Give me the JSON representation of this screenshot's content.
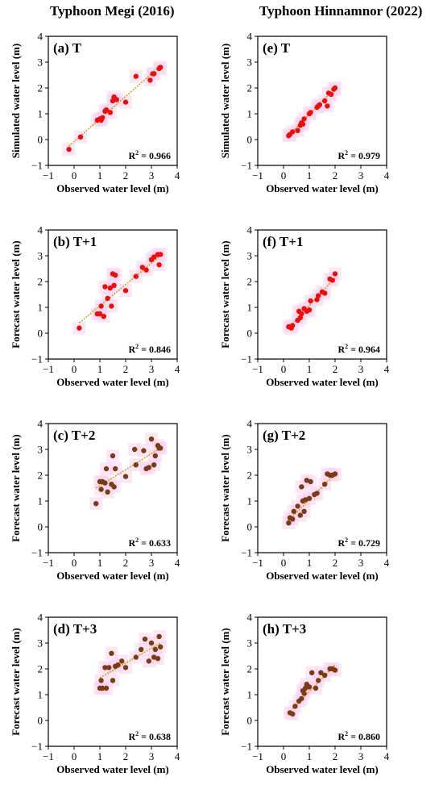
{
  "column_titles": [
    "Typhoon Megi (2016)",
    "Typhoon Hinnamnor (2022)"
  ],
  "colors": {
    "red_points": "#e8100c",
    "brown_points": "#7b3c15",
    "fit_line": "#d39a00",
    "halo": "#f7d4ee"
  },
  "chart_data": [
    {
      "type": "scatter",
      "panel_label": "(a) T",
      "xlabel": "Observed water level (m)",
      "ylabel": "Simulated water level (m)",
      "xlim": [
        -1,
        4
      ],
      "ylim": [
        -1,
        4
      ],
      "xticks": [
        -1,
        0,
        1,
        2,
        3,
        4
      ],
      "yticks": [
        -1,
        0,
        1,
        2,
        3,
        4
      ],
      "r2_label": "R",
      "r2_sup": "2",
      "r2_value": " = 0.966",
      "marker_color": "#e8100c",
      "fit_line": {
        "x": [
          -0.2,
          3.35
        ],
        "y": [
          -0.25,
          2.85
        ]
      },
      "points": {
        "x": [
          -0.2,
          0.25,
          0.9,
          1.0,
          1.05,
          1.1,
          1.2,
          1.25,
          1.4,
          1.5,
          1.55,
          1.65,
          2.0,
          2.4,
          2.95,
          3.05,
          3.1,
          3.3,
          3.35
        ],
        "y": [
          -0.38,
          0.1,
          0.75,
          0.8,
          0.75,
          0.85,
          1.1,
          1.15,
          1.05,
          1.5,
          1.65,
          1.55,
          1.45,
          2.45,
          2.3,
          2.55,
          2.55,
          2.75,
          2.8
        ]
      }
    },
    {
      "type": "scatter",
      "panel_label": "(b) T+1",
      "xlabel": "Observed water level (m)",
      "ylabel": "Forecast water level (m)",
      "xlim": [
        -1,
        4
      ],
      "ylim": [
        -1,
        4
      ],
      "xticks": [
        -1,
        0,
        1,
        2,
        3,
        4
      ],
      "yticks": [
        -1,
        0,
        1,
        2,
        3,
        4
      ],
      "r2_label": "R",
      "r2_sup": "2",
      "r2_value": " = 0.846",
      "marker_color": "#e8100c",
      "fit_line": {
        "x": [
          0.2,
          3.35
        ],
        "y": [
          0.4,
          3.0
        ]
      },
      "points": {
        "x": [
          0.2,
          0.9,
          1.0,
          1.05,
          1.15,
          1.2,
          1.3,
          1.4,
          1.45,
          1.5,
          1.55,
          1.6,
          2.0,
          2.4,
          2.65,
          2.8,
          3.0,
          3.1,
          3.25,
          3.3,
          3.35
        ],
        "y": [
          0.2,
          0.75,
          0.75,
          1.05,
          0.65,
          1.8,
          1.35,
          1.75,
          1.05,
          2.3,
          1.85,
          2.25,
          1.65,
          2.2,
          2.55,
          2.45,
          2.85,
          2.95,
          3.05,
          2.65,
          3.05
        ]
      }
    },
    {
      "type": "scatter",
      "panel_label": "(c) T+2",
      "xlabel": "Observed water level (m)",
      "ylabel": "Forecast water level (m)",
      "xlim": [
        -1,
        4
      ],
      "ylim": [
        -1,
        4
      ],
      "xticks": [
        -1,
        0,
        1,
        2,
        3,
        4
      ],
      "yticks": [
        -1,
        0,
        1,
        2,
        3,
        4
      ],
      "r2_label": "R",
      "r2_sup": "2",
      "r2_value": " = 0.633",
      "marker_color": "#7b3c15",
      "fit_line": {
        "x": [
          0.85,
          3.35
        ],
        "y": [
          1.5,
          3.05
        ]
      },
      "points": {
        "x": [
          0.85,
          1.0,
          1.05,
          1.1,
          1.2,
          1.25,
          1.3,
          1.45,
          1.5,
          1.55,
          1.6,
          2.0,
          2.35,
          2.4,
          2.7,
          2.8,
          2.9,
          3.0,
          3.1,
          3.15,
          3.25,
          3.3,
          3.35
        ],
        "y": [
          0.9,
          1.75,
          1.45,
          1.75,
          1.7,
          2.25,
          1.35,
          1.65,
          2.75,
          1.55,
          2.25,
          1.95,
          3.0,
          2.4,
          2.95,
          2.25,
          2.3,
          3.4,
          2.4,
          2.75,
          3.15,
          3.05,
          3.05
        ]
      }
    },
    {
      "type": "scatter",
      "panel_label": "(d) T+3",
      "xlabel": "Observed water level (m)",
      "ylabel": "Forecast water level (m)",
      "xlim": [
        -1,
        4
      ],
      "ylim": [
        -1,
        4
      ],
      "xticks": [
        -1,
        0,
        1,
        2,
        3,
        4
      ],
      "yticks": [
        -1,
        0,
        1,
        2,
        3,
        4
      ],
      "r2_label": "R",
      "r2_sup": "2",
      "r2_value": " = 0.638",
      "marker_color": "#7b3c15",
      "fit_line": {
        "x": [
          1.0,
          3.35
        ],
        "y": [
          1.65,
          3.0
        ]
      },
      "points": {
        "x": [
          1.0,
          1.05,
          1.1,
          1.2,
          1.25,
          1.35,
          1.45,
          1.5,
          1.6,
          1.7,
          1.85,
          2.0,
          2.4,
          2.6,
          2.75,
          2.9,
          3.0,
          3.1,
          3.15,
          3.25,
          3.3,
          3.35
        ],
        "y": [
          1.25,
          1.55,
          1.25,
          2.05,
          1.25,
          2.05,
          2.6,
          1.55,
          2.1,
          2.15,
          2.3,
          2.05,
          2.45,
          2.75,
          3.15,
          2.3,
          3.0,
          2.45,
          2.75,
          2.4,
          3.25,
          2.85
        ]
      }
    },
    {
      "type": "scatter",
      "panel_label": "(e) T",
      "xlabel": "Observed water level (m)",
      "ylabel": "Simulated water level (m)",
      "xlim": [
        -1,
        4
      ],
      "ylim": [
        -1,
        4
      ],
      "xticks": [
        -1,
        0,
        1,
        2,
        3,
        4
      ],
      "yticks": [
        -1,
        0,
        1,
        2,
        3,
        4
      ],
      "r2_label": "R",
      "r2_sup": "2",
      "r2_value": " = 0.979",
      "marker_color": "#e8100c",
      "fit_line": {
        "x": [
          0.2,
          2.0
        ],
        "y": [
          0.15,
          2.0
        ]
      },
      "points": {
        "x": [
          0.2,
          0.25,
          0.35,
          0.55,
          0.65,
          0.7,
          0.75,
          0.8,
          1.0,
          1.05,
          1.3,
          1.35,
          1.4,
          1.6,
          1.7,
          1.75,
          1.85,
          1.95,
          2.0
        ],
        "y": [
          0.15,
          0.2,
          0.3,
          0.35,
          0.55,
          0.65,
          0.6,
          0.8,
          1.0,
          1.05,
          1.25,
          1.3,
          1.35,
          1.5,
          1.3,
          1.8,
          1.75,
          1.95,
          2.0
        ]
      }
    },
    {
      "type": "scatter",
      "panel_label": "(f) T+1",
      "xlabel": "Observed water level (m)",
      "ylabel": "Forecast water level (m)",
      "xlim": [
        -1,
        4
      ],
      "ylim": [
        -1,
        4
      ],
      "xticks": [
        -1,
        0,
        1,
        2,
        3,
        4
      ],
      "yticks": [
        -1,
        0,
        1,
        2,
        3,
        4
      ],
      "r2_label": "R",
      "r2_sup": "2",
      "r2_value": " = 0.964",
      "marker_color": "#e8100c",
      "fit_line": {
        "x": [
          0.2,
          2.0
        ],
        "y": [
          0.2,
          2.15
        ]
      },
      "points": {
        "x": [
          0.2,
          0.3,
          0.35,
          0.55,
          0.6,
          0.65,
          0.7,
          0.8,
          0.9,
          1.0,
          1.05,
          1.3,
          1.35,
          1.5,
          1.6,
          1.8,
          1.9,
          2.0
        ],
        "y": [
          0.25,
          0.2,
          0.3,
          0.5,
          0.85,
          0.6,
          0.75,
          0.95,
          0.85,
          0.9,
          1.25,
          1.3,
          1.45,
          1.6,
          1.55,
          2.1,
          2.05,
          2.3
        ]
      }
    },
    {
      "type": "scatter",
      "panel_label": "(g) T+2",
      "xlabel": "Observed water level (m)",
      "ylabel": "Forecast water level (m)",
      "xlim": [
        -1,
        4
      ],
      "ylim": [
        -1,
        4
      ],
      "xticks": [
        -1,
        0,
        1,
        2,
        3,
        4
      ],
      "yticks": [
        -1,
        0,
        1,
        2,
        3,
        4
      ],
      "r2_label": "R",
      "r2_sup": "2",
      "r2_value": " = 0.729",
      "marker_color": "#7b3c15",
      "fit_line": {
        "x": [
          0.2,
          2.0
        ],
        "y": [
          0.25,
          2.05
        ]
      },
      "points": {
        "x": [
          0.2,
          0.25,
          0.35,
          0.4,
          0.55,
          0.65,
          0.7,
          0.75,
          0.8,
          0.85,
          0.9,
          1.0,
          1.05,
          1.2,
          1.3,
          1.6,
          1.7,
          1.8,
          1.9,
          2.0
        ],
        "y": [
          0.15,
          0.35,
          0.3,
          0.6,
          0.8,
          0.45,
          1.55,
          1.0,
          0.6,
          1.05,
          1.8,
          1.1,
          1.75,
          1.25,
          1.3,
          1.65,
          2.05,
          2.0,
          2.0,
          2.05
        ]
      }
    },
    {
      "type": "scatter",
      "panel_label": "(h) T+3",
      "xlabel": "Observed water level (m)",
      "ylabel": "Forecast water level (m)",
      "xlim": [
        -1,
        4
      ],
      "ylim": [
        -1,
        4
      ],
      "xticks": [
        -1,
        0,
        1,
        2,
        3,
        4
      ],
      "yticks": [
        -1,
        0,
        1,
        2,
        3,
        4
      ],
      "r2_label": "R",
      "r2_sup": "2",
      "r2_value": " = 0.860",
      "marker_color": "#7b3c15",
      "fit_line": {
        "x": [
          0.35,
          2.0
        ],
        "y": [
          0.45,
          2.15
        ]
      },
      "points": {
        "x": [
          0.25,
          0.35,
          0.45,
          0.6,
          0.7,
          0.75,
          0.8,
          0.85,
          0.9,
          1.0,
          1.1,
          1.25,
          1.35,
          1.45,
          1.6,
          1.8,
          1.9,
          2.0
        ],
        "y": [
          0.3,
          0.25,
          0.55,
          0.75,
          0.85,
          1.15,
          1.05,
          1.25,
          1.4,
          1.3,
          1.85,
          1.25,
          1.55,
          1.85,
          1.75,
          2.0,
          2.0,
          1.95
        ]
      }
    }
  ]
}
